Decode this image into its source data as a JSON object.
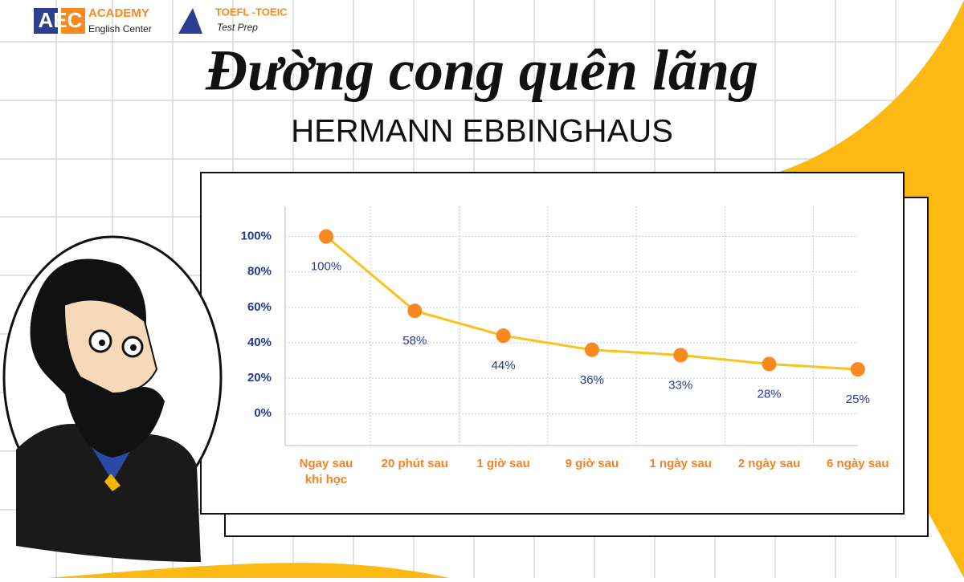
{
  "logo": {
    "mark": "AEC",
    "name": "ACADEMY",
    "tagline": "English Center",
    "course": "TOEFL -TOEIC",
    "course_tagline": "Test Prep"
  },
  "chart_data": {
    "type": "line",
    "title": "Đường cong quên lãng",
    "subtitle": "HERMANN EBBINGHAUS",
    "categories": [
      "Ngay sau\nkhi học",
      "20 phút sau",
      "1 giờ sau",
      "9 giờ sau",
      "1 ngày sau",
      "2 ngày sau",
      "6 ngày sau"
    ],
    "values": [
      100,
      58,
      44,
      36,
      33,
      28,
      25
    ],
    "value_labels": [
      "100%",
      "58%",
      "44%",
      "36%",
      "33%",
      "28%",
      "25%"
    ],
    "line_color": "#f9c21e",
    "marker_color": "#f7891f",
    "ylim": [
      -18,
      117
    ],
    "yticks": [
      {
        "value": 0,
        "label": "0%"
      },
      {
        "value": 20,
        "label": "20%"
      },
      {
        "value": 40,
        "label": "40%"
      },
      {
        "value": 60,
        "label": "60%"
      },
      {
        "value": 80,
        "label": "80%"
      },
      {
        "value": 100,
        "label": "100%"
      }
    ],
    "grid": true
  }
}
